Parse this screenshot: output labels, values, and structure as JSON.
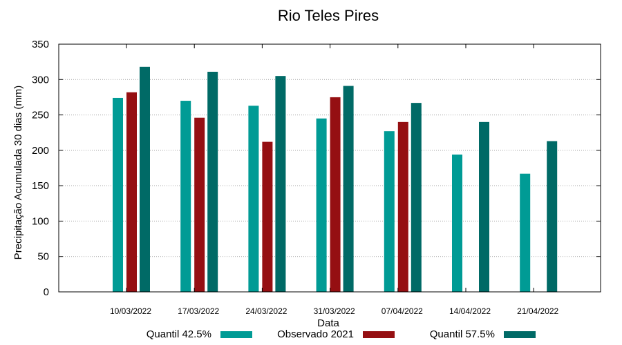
{
  "chart_data": {
    "type": "bar",
    "title": "Rio Teles Pires",
    "xlabel": "Data",
    "ylabel": "Precipitação Acumulada 30 dias (mm)",
    "ylim": [
      0,
      350
    ],
    "yticks": [
      0,
      50,
      100,
      150,
      200,
      250,
      300,
      350
    ],
    "grid": true,
    "legend_position": "bottom",
    "categories": [
      "10/03/2022",
      "17/03/2022",
      "24/03/2022",
      "31/03/2022",
      "07/04/2022",
      "14/04/2022",
      "21/04/2022"
    ],
    "series": [
      {
        "name": "Quantil 42.5%",
        "color": "#009b95",
        "values": [
          274,
          270,
          263,
          245,
          227,
          194,
          167
        ]
      },
      {
        "name": "Observado 2021",
        "color": "#950f12",
        "values": [
          282,
          246,
          212,
          275,
          240,
          null,
          null
        ]
      },
      {
        "name": "Quantil 57.5%",
        "color": "#006a66",
        "values": [
          318,
          311,
          305,
          291,
          267,
          240,
          213
        ]
      }
    ]
  }
}
